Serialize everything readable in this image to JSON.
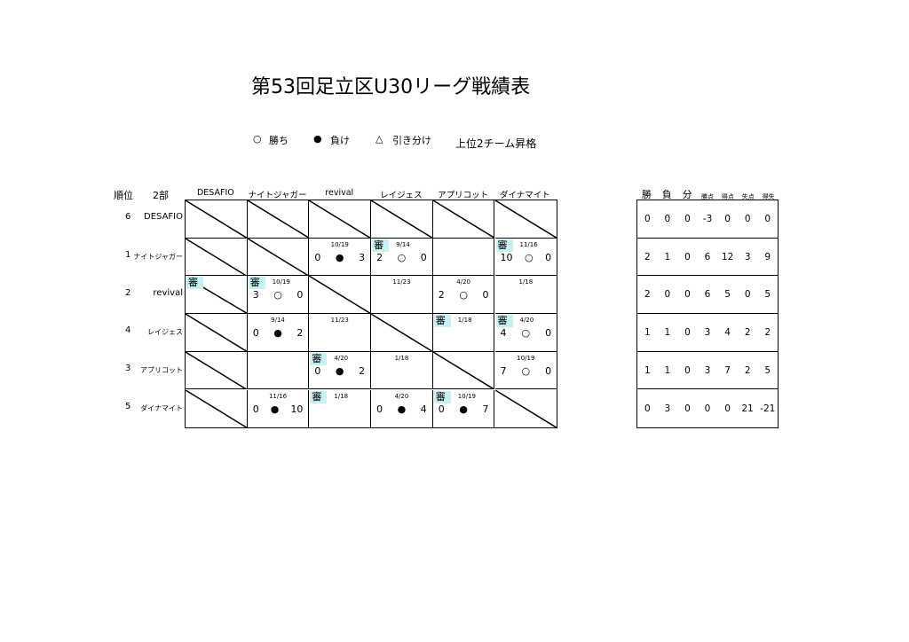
{
  "title": "第53回足立区U30リーグ戦績表",
  "legend": {
    "win_mark": "○",
    "win": "勝ち",
    "loss_mark": "●",
    "loss": "負け",
    "draw_mark": "△",
    "draw": "引き分け",
    "note": "上位2チーム昇格"
  },
  "header": {
    "rank": "順位",
    "division": "2部"
  },
  "teams": [
    "DESAFIO",
    "ナイトジャガー",
    "revival",
    "レイジェス",
    "アプリコット",
    "ダイナマイト"
  ],
  "rows": [
    {
      "rank": "6",
      "name": "DESAFIO",
      "cells": [
        {
          "diag": true
        },
        {
          "diag": true
        },
        {
          "diag": true
        },
        {
          "diag": true
        },
        {
          "diag": true
        },
        {
          "diag": true
        }
      ]
    },
    {
      "rank": "1",
      "name": "ナイトジャガー",
      "cells": [
        {
          "diag": true
        },
        {
          "diag": true
        },
        {
          "date": "10/19",
          "score": [
            "0",
            "●",
            "3"
          ]
        },
        {
          "ref": true,
          "date": "9/14",
          "score": [
            "2",
            "○",
            "0"
          ]
        },
        {},
        {
          "ref": true,
          "date": "11/16",
          "score": [
            "10",
            "○",
            "0"
          ]
        }
      ]
    },
    {
      "rank": "2",
      "name": "revival",
      "cells": [
        {
          "diag": true,
          "ref": true
        },
        {
          "ref": true,
          "date": "10/19",
          "score": [
            "3",
            "○",
            "0"
          ]
        },
        {
          "diag": true
        },
        {
          "date": "11/23"
        },
        {
          "date": "4/20",
          "score": [
            "2",
            "○",
            "0"
          ]
        },
        {
          "date": "1/18"
        }
      ]
    },
    {
      "rank": "4",
      "name": "レイジェス",
      "cells": [
        {
          "diag": true
        },
        {
          "date": "9/14",
          "score": [
            "0",
            "●",
            "2"
          ]
        },
        {
          "date": "11/23"
        },
        {
          "diag": true
        },
        {
          "ref": true,
          "date": "1/18"
        },
        {
          "ref": true,
          "date": "4/20",
          "score": [
            "4",
            "○",
            "0"
          ]
        }
      ]
    },
    {
      "rank": "3",
      "name": "アプリコット",
      "cells": [
        {
          "diag": true
        },
        {},
        {
          "ref": true,
          "date": "4/20",
          "score": [
            "0",
            "●",
            "2"
          ]
        },
        {
          "date": "1/18"
        },
        {
          "diag": true
        },
        {
          "date": "10/19",
          "score": [
            "7",
            "○",
            "0"
          ]
        }
      ]
    },
    {
      "rank": "5",
      "name": "ダイナマイト",
      "cells": [
        {
          "diag": true
        },
        {
          "date": "11/16",
          "score": [
            "0",
            "●",
            "10"
          ]
        },
        {
          "ref": true,
          "date": "1/18"
        },
        {
          "date": "4/20",
          "score": [
            "0",
            "●",
            "4"
          ]
        },
        {
          "ref": true,
          "date": "10/19",
          "score": [
            "0",
            "●",
            "7"
          ]
        },
        {
          "diag": true
        }
      ]
    }
  ],
  "referee_label": "審",
  "referee_color": "#c6f2f6",
  "standings": {
    "headers": [
      "勝",
      "負",
      "分",
      "勝点",
      "得点",
      "失点",
      "得失"
    ],
    "rows": [
      [
        "0",
        "0",
        "0",
        "-3",
        "0",
        "0",
        "0"
      ],
      [
        "2",
        "1",
        "0",
        "6",
        "12",
        "3",
        "9"
      ],
      [
        "2",
        "0",
        "0",
        "6",
        "5",
        "0",
        "5"
      ],
      [
        "1",
        "1",
        "0",
        "3",
        "4",
        "2",
        "2"
      ],
      [
        "1",
        "1",
        "0",
        "3",
        "7",
        "2",
        "5"
      ],
      [
        "0",
        "3",
        "0",
        "0",
        "0",
        "21",
        "-21"
      ]
    ]
  }
}
